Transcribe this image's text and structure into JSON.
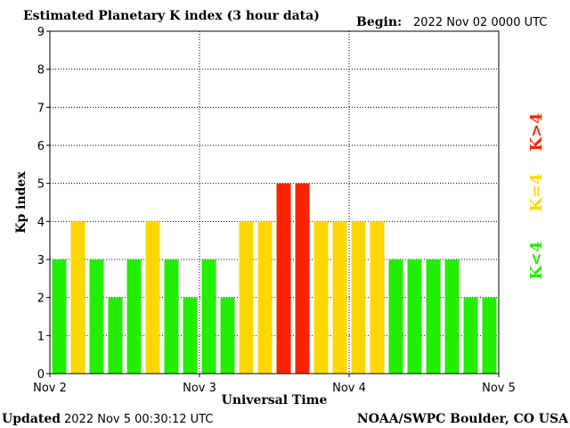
{
  "header": {
    "title": "Estimated Planetary K index (3 hour data)",
    "begin_label": "Begin:",
    "begin_value": "2022 Nov 02 0000 UTC"
  },
  "footer": {
    "updated_label": "Updated",
    "updated_value": "2022 Nov  5 00:30:12 UTC",
    "credit": "NOAA/SWPC Boulder, CO USA"
  },
  "legend": {
    "low": {
      "text": "K<4",
      "color": "#22ee00"
    },
    "mid": {
      "text": "K=4",
      "color": "#ffd700"
    },
    "high": {
      "text": "K>4",
      "color": "#ff2200"
    }
  },
  "chart_data": {
    "type": "bar",
    "title": "Estimated Planetary K index (3 hour data)",
    "xlabel": "Universal Time",
    "ylabel": "Kp index",
    "ylim": [
      0,
      9
    ],
    "yticks": [
      "0",
      "1",
      "2",
      "3",
      "4",
      "5",
      "6",
      "7",
      "8",
      "9"
    ],
    "xticks": [
      "Nov 2",
      "Nov 3",
      "Nov 4",
      "Nov 5"
    ],
    "x_start": "2022-11-02 00:00 UTC",
    "x_end": "2022-11-05 00:00 UTC",
    "bar_interval": "3 hours",
    "grid": true,
    "values": [
      3,
      4,
      3,
      2,
      3,
      4,
      3,
      2,
      3,
      2,
      4,
      4,
      5,
      5,
      4,
      4,
      4,
      4,
      3,
      3,
      3,
      3,
      2,
      2
    ],
    "colors": {
      "low": "#22ee00",
      "mid": "#ffd700",
      "high": "#ff2200"
    }
  }
}
